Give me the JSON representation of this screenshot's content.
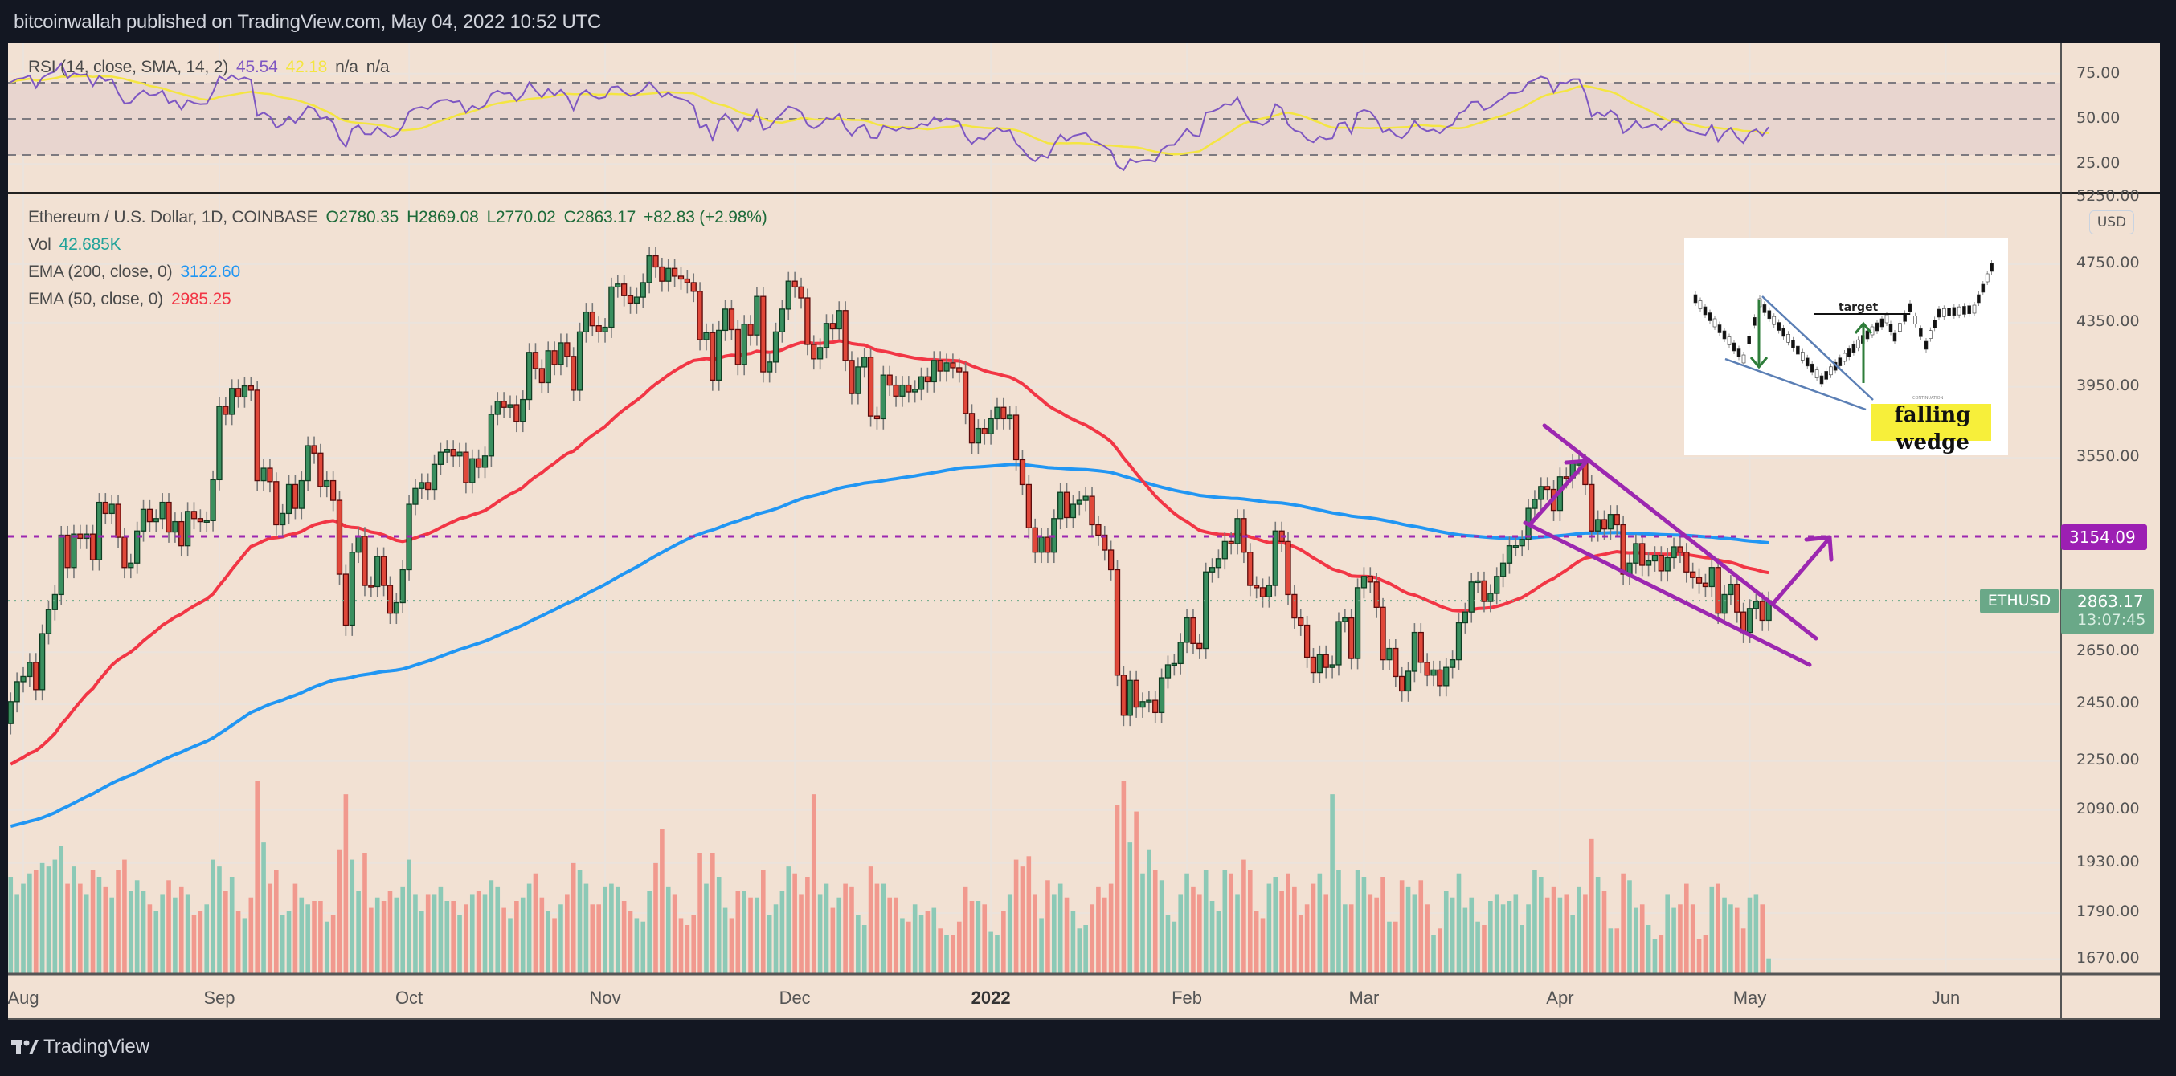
{
  "header": {
    "title": "bitcoinwallah published on TradingView.com, May 04, 2022 10:52 UTC"
  },
  "rsi": {
    "label": "RSI (14, close, SMA, 14, 2)",
    "value": "45.54",
    "sma_value": "42.18",
    "na1": "n/a",
    "na2": "n/a",
    "axis": [
      "75.00",
      "50.00",
      "25.00"
    ],
    "bands": [
      70,
      50,
      30
    ]
  },
  "legend": {
    "symbol": "Ethereum / U.S. Dollar, 1D, COINBASE",
    "open": "O2780.35",
    "high": "H2869.08",
    "low": "L2770.02",
    "close": "C2863.17",
    "change": "+82.83 (+2.98%)",
    "vol_label": "Vol",
    "vol_value": "42.685K",
    "ema200_label": "EMA (200, close, 0)",
    "ema200_value": "3122.60",
    "ema50_label": "EMA (50, close, 0)",
    "ema50_value": "2985.25"
  },
  "price_axis": {
    "currency": "USD",
    "labels": [
      "5250.00",
      "4750.00",
      "4350.00",
      "3950.00",
      "3550.00",
      "2650.00",
      "2450.00",
      "2250.00",
      "2090.00",
      "1930.00",
      "1790.00",
      "1670.00"
    ],
    "hline_value": "3154.09",
    "last_price": "2863.17",
    "countdown": "13:07:45",
    "symbol_tag": "ETHUSD"
  },
  "time_axis": {
    "labels": [
      "Aug",
      "Sep",
      "Oct",
      "Nov",
      "Dec",
      "2022",
      "Feb",
      "Mar",
      "Apr",
      "May",
      "Jun"
    ],
    "day_offsets_from_aug1": [
      0,
      31,
      61,
      92,
      122,
      153,
      184,
      212,
      243,
      273,
      304
    ]
  },
  "inset": {
    "target_label": "target",
    "caption_small": "CONTINUATION",
    "caption_line1": "falling",
    "caption_line2": "wedge"
  },
  "footer": {
    "logo_text": "TradingView"
  },
  "colors": {
    "background": "#f2e1d3",
    "up": "#3a8f5f",
    "down": "#e0483a",
    "ema200": "#2196f3",
    "ema50": "#f23645",
    "rsi": "#7e57c2",
    "rsi_sma": "#f4e542",
    "drawing": "#9c27b0",
    "vol_up": "#8cc9b6",
    "vol_down": "#f1998e"
  },
  "chart_data": {
    "type": "candlestick",
    "title": "Ethereum / U.S. Dollar, 1D, COINBASE",
    "start_date": "2021-07-30",
    "end_date": "2022-05-04",
    "first_open": 2380,
    "y_scale": "log",
    "ylim": [
      1600,
      5300
    ],
    "horizontal_line": 3154.09,
    "ema200_start": 2035,
    "ema50_start": 2230,
    "closes": [
      2460,
      2535,
      2555,
      2610,
      2505,
      2725,
      2825,
      2890,
      3160,
      3010,
      3165,
      3145,
      3165,
      3045,
      3320,
      3265,
      3310,
      3150,
      3010,
      3030,
      3180,
      3285,
      3225,
      3240,
      3320,
      3175,
      3225,
      3110,
      3275,
      3240,
      3225,
      3230,
      3435,
      3835,
      3790,
      3940,
      3890,
      3955,
      3930,
      3430,
      3495,
      3425,
      3210,
      3265,
      3410,
      3290,
      3430,
      3615,
      3575,
      3400,
      3430,
      3330,
      2980,
      2760,
      3080,
      3155,
      2930,
      2925,
      3060,
      2930,
      2810,
      2855,
      3000,
      3310,
      3390,
      3420,
      3385,
      3515,
      3580,
      3595,
      3560,
      3580,
      3420,
      3545,
      3500,
      3560,
      3790,
      3865,
      3830,
      3845,
      3750,
      3875,
      4160,
      4060,
      3975,
      4170,
      4085,
      4220,
      4135,
      3930,
      4290,
      4420,
      4330,
      4290,
      4320,
      4590,
      4610,
      4530,
      4480,
      4520,
      4620,
      4810,
      4730,
      4630,
      4720,
      4665,
      4645,
      4620,
      4560,
      4240,
      4285,
      3990,
      4300,
      4440,
      4305,
      4085,
      4340,
      4270,
      4525,
      4040,
      4100,
      4290,
      4440,
      4630,
      4590,
      4515,
      4210,
      4120,
      4190,
      4345,
      4310,
      4430,
      4110,
      3910,
      4070,
      4130,
      3780,
      3765,
      4020,
      3960,
      3895,
      3960,
      3920,
      3935,
      4010,
      3980,
      4110,
      4045,
      4095,
      4065,
      4040,
      3795,
      3630,
      3710,
      3680,
      3765,
      3830,
      3765,
      3785,
      3540,
      3410,
      3195,
      3080,
      3150,
      3080,
      3240,
      3370,
      3245,
      3310,
      3330,
      3350,
      3210,
      3160,
      3090,
      3000,
      2560,
      2410,
      2540,
      2440,
      2460,
      2465,
      2420,
      2550,
      2600,
      2605,
      2690,
      2790,
      2685,
      2665,
      2990,
      3010,
      3050,
      3130,
      3120,
      3240,
      3080,
      2930,
      2920,
      2880,
      2930,
      3180,
      3130,
      2890,
      2790,
      2760,
      2630,
      2570,
      2640,
      2590,
      2600,
      2775,
      2790,
      2625,
      2920,
      2970,
      2945,
      2835,
      2620,
      2665,
      2555,
      2500,
      2575,
      2730,
      2610,
      2560,
      2580,
      2520,
      2590,
      2620,
      2770,
      2815,
      2945,
      2950,
      2860,
      2895,
      2970,
      3030,
      3110,
      3110,
      3140,
      3290,
      3335,
      3400,
      3385,
      3280,
      3450,
      3445,
      3520,
      3520,
      3410,
      3180,
      3235,
      3190,
      3260,
      3210,
      2980,
      3030,
      3120,
      3020,
      3040,
      3065,
      2995,
      3055,
      3105,
      3080,
      2990,
      2965,
      2940,
      2925,
      3010,
      2810,
      2890,
      2935,
      2815,
      2730,
      2830,
      2860,
      2780.35,
      2863.17
    ],
    "volumes_k": [
      280,
      230,
      260,
      290,
      300,
      320,
      310,
      330,
      370,
      260,
      310,
      260,
      230,
      300,
      280,
      250,
      220,
      300,
      330,
      240,
      270,
      240,
      200,
      180,
      230,
      270,
      220,
      250,
      230,
      170,
      180,
      200,
      330,
      310,
      240,
      280,
      180,
      160,
      220,
      560,
      380,
      260,
      300,
      170,
      180,
      260,
      220,
      200,
      210,
      210,
      150,
      170,
      360,
      520,
      330,
      240,
      350,
      190,
      220,
      210,
      240,
      220,
      250,
      330,
      230,
      180,
      230,
      230,
      250,
      210,
      210,
      170,
      200,
      230,
      240,
      230,
      270,
      250,
      190,
      160,
      210,
      220,
      260,
      290,
      220,
      180,
      160,
      200,
      230,
      320,
      300,
      260,
      200,
      200,
      250,
      260,
      250,
      210,
      180,
      160,
      150,
      240,
      320,
      420,
      250,
      230,
      160,
      140,
      170,
      350,
      260,
      350,
      280,
      190,
      160,
      240,
      240,
      220,
      220,
      300,
      170,
      200,
      240,
      310,
      290,
      230,
      280,
      520,
      230,
      260,
      190,
      220,
      260,
      250,
      170,
      140,
      310,
      260,
      260,
      220,
      220,
      160,
      150,
      200,
      170,
      180,
      190,
      130,
      110,
      110,
      150,
      250,
      210,
      210,
      200,
      120,
      110,
      180,
      230,
      330,
      310,
      340,
      230,
      160,
      270,
      230,
      260,
      220,
      180,
      130,
      140,
      200,
      250,
      220,
      260,
      490,
      560,
      380,
      470,
      290,
      360,
      300,
      270,
      170,
      150,
      230,
      290,
      250,
      230,
      300,
      210,
      180,
      300,
      290,
      230,
      330,
      300,
      180,
      160,
      260,
      280,
      240,
      290,
      250,
      170,
      200,
      260,
      290,
      230,
      520,
      300,
      200,
      200,
      300,
      280,
      230,
      220,
      280,
      150,
      150,
      270,
      250,
      230,
      270,
      200,
      110,
      130,
      240,
      220,
      290,
      190,
      220,
      150,
      140,
      210,
      230,
      200,
      210,
      230,
      140,
      200,
      300,
      280,
      220,
      250,
      220,
      230,
      170,
      250,
      230,
      390,
      280,
      240,
      130,
      130,
      290,
      270,
      190,
      200,
      140,
      100,
      110,
      230,
      190,
      200,
      260,
      200,
      100,
      110,
      250,
      260,
      220,
      200,
      190,
      130,
      220,
      230,
      200,
      42.685
    ]
  }
}
